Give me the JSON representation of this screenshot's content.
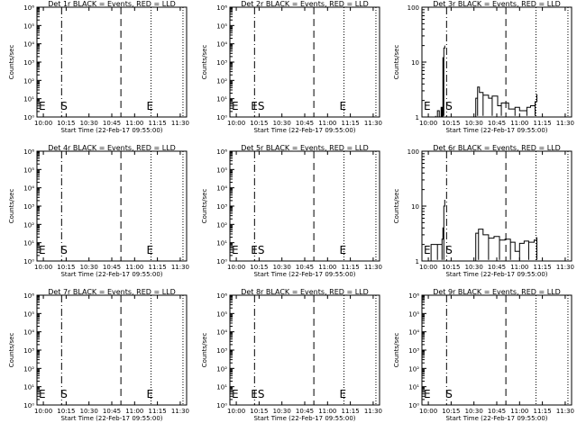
{
  "colors": {
    "background": "#ffffff",
    "axes": "#000000",
    "events": "#000000"
  },
  "chart_data": [
    {
      "type": "line",
      "title": "Det 1r BLACK = Events, RED = LLD",
      "xlabel": "Start Time (22-Feb-17 09:55:00)",
      "ylabel": "Counts/sec",
      "xticks": [
        "10:00",
        "10:15",
        "10:30",
        "10:45",
        "11:00",
        "11:15",
        "11:30"
      ],
      "yscale": "log",
      "ylim": [
        1,
        1000000
      ],
      "yticks": [
        "10⁰",
        "10¹",
        "10²",
        "10³",
        "10⁴",
        "10⁵",
        "10⁶"
      ],
      "marker_labels": [
        "E",
        "S",
        "E"
      ],
      "series": []
    },
    {
      "type": "line",
      "title": "Det 2r BLACK = Events, RED = LLD",
      "xlabel": "Start Time (22-Feb-17 09:55:00)",
      "ylabel": "Counts/sec",
      "xticks": [
        "10:00",
        "10:15",
        "10:30",
        "10:45",
        "11:00",
        "11:15",
        "11:30"
      ],
      "yscale": "log",
      "ylim": [
        1,
        1000000
      ],
      "yticks": [
        "10⁰",
        "10¹",
        "10²",
        "10³",
        "10⁴",
        "10⁵",
        "10⁶"
      ],
      "marker_labels": [
        "E",
        "ES",
        "E"
      ],
      "series": []
    },
    {
      "type": "line",
      "title": "Det 3r BLACK = Events, RED = LLD",
      "xlabel": "Start Time (22-Feb-17 09:55:00)",
      "ylabel": "Counts/sec",
      "xticks": [
        "10:00",
        "10:15",
        "10:30",
        "10:45",
        "11:00",
        "11:15",
        "11:30"
      ],
      "yscale": "log",
      "ylim": [
        1,
        100
      ],
      "yticks": [
        "1",
        "10",
        "100"
      ],
      "marker_labels": [
        "S",
        "E"
      ],
      "series": [
        {
          "x": [
            10.03,
            10.08,
            10.1,
            10.12,
            10.14,
            10.15,
            10.16,
            10.17,
            10.18
          ],
          "y": [
            1,
            1,
            1.3,
            1,
            1.5,
            1,
            12,
            18,
            20
          ]
        },
        {
          "x": [
            10.52,
            10.54,
            10.56,
            10.6,
            10.66,
            10.7,
            10.76,
            10.8,
            10.88,
            10.95,
            11.0,
            11.08,
            11.12,
            11.17,
            11.19
          ],
          "y": [
            2.2,
            3.5,
            2.8,
            2.5,
            2.2,
            2.4,
            1.6,
            1.8,
            1.4,
            1.5,
            1.3,
            1.5,
            1.6,
            1.9,
            2.6
          ]
        }
      ]
    },
    {
      "type": "line",
      "title": "Det 4r BLACK = Events, RED = LLD",
      "xlabel": "Start Time (22-Feb-17 09:55:00)",
      "ylabel": "Counts/sec",
      "xticks": [
        "10:00",
        "10:15",
        "10:30",
        "10:45",
        "11:00",
        "11:15",
        "11:30"
      ],
      "yscale": "log",
      "ylim": [
        1,
        1000000
      ],
      "yticks": [
        "10⁰",
        "10¹",
        "10²",
        "10³",
        "10⁴",
        "10⁵",
        "10⁶"
      ],
      "marker_labels": [
        "E",
        "S",
        "E"
      ],
      "series": []
    },
    {
      "type": "line",
      "title": "Det 5r BLACK = Events, RED = LLD",
      "xlabel": "Start Time (22-Feb-17 09:55:00)",
      "ylabel": "Counts/sec",
      "xticks": [
        "10:00",
        "10:15",
        "10:30",
        "10:45",
        "11:00",
        "11:15",
        "11:30"
      ],
      "yscale": "log",
      "ylim": [
        1,
        1000000
      ],
      "yticks": [
        "10⁰",
        "10¹",
        "10²",
        "10³",
        "10⁴",
        "10⁵",
        "10⁶"
      ],
      "marker_labels": [
        "E",
        "ES",
        "E"
      ],
      "series": []
    },
    {
      "type": "line",
      "title": "Det 6r BLACK = Events, RED = LLD",
      "xlabel": "Start Time (22-Feb-17 09:55:00)",
      "ylabel": "Counts/sec",
      "xticks": [
        "10:00",
        "10:15",
        "10:30",
        "10:45",
        "11:00",
        "11:15",
        "11:30"
      ],
      "yscale": "log",
      "ylim": [
        1,
        100
      ],
      "yticks": [
        "1",
        "10",
        "100"
      ],
      "marker_labels": [
        "S",
        "E"
      ],
      "series": [
        {
          "x": [
            10.03,
            10.1,
            10.14,
            10.15,
            10.16,
            10.17,
            10.18
          ],
          "y": [
            2,
            2,
            2,
            2.5,
            4,
            10,
            13
          ]
        },
        {
          "x": [
            10.52,
            10.55,
            10.6,
            10.66,
            10.72,
            10.78,
            10.84,
            10.9,
            10.95,
            11.0,
            11.05,
            11.1,
            11.16,
            11.19
          ],
          "y": [
            3.2,
            3.8,
            3.0,
            2.6,
            2.8,
            2.4,
            2.5,
            2.2,
            1.5,
            2.1,
            2.3,
            2.2,
            2.4,
            2.7
          ]
        }
      ]
    },
    {
      "type": "line",
      "title": "Det 7r BLACK = Events, RED = LLD",
      "xlabel": "Start Time (22-Feb-17 09:55:00)",
      "ylabel": "Counts/sec",
      "xticks": [
        "10:00",
        "10:15",
        "10:30",
        "10:45",
        "11:00",
        "11:15",
        "11:30"
      ],
      "yscale": "log",
      "ylim": [
        1,
        1000000
      ],
      "yticks": [
        "10⁰",
        "10¹",
        "10²",
        "10³",
        "10⁴",
        "10⁵",
        "10⁶"
      ],
      "marker_labels": [
        "E",
        "S",
        "E"
      ],
      "series": []
    },
    {
      "type": "line",
      "title": "Det 8r BLACK = Events, RED = LLD",
      "xlabel": "Start Time (22-Feb-17 09:55:00)",
      "ylabel": "Counts/sec",
      "xticks": [
        "10:00",
        "10:15",
        "10:30",
        "10:45",
        "11:00",
        "11:15",
        "11:30"
      ],
      "yscale": "log",
      "ylim": [
        1,
        1000000
      ],
      "yticks": [
        "10⁰",
        "10¹",
        "10²",
        "10³",
        "10⁴",
        "10⁵",
        "10⁶"
      ],
      "marker_labels": [
        "E",
        "ES",
        "E"
      ],
      "series": []
    },
    {
      "type": "line",
      "title": "Det 9r BLACK = Events, RED = LLD",
      "xlabel": "Start Time (22-Feb-17 09:55:00)",
      "ylabel": "Counts/sec",
      "xticks": [
        "10:00",
        "10:15",
        "10:30",
        "10:45",
        "11:00",
        "11:15",
        "11:30"
      ],
      "yscale": "log",
      "ylim": [
        1,
        1000000
      ],
      "yticks": [
        "10⁰",
        "10¹",
        "10²",
        "10³",
        "10⁴",
        "10⁵",
        "10⁶"
      ],
      "marker_labels": [
        "S",
        "E"
      ],
      "series": []
    }
  ]
}
